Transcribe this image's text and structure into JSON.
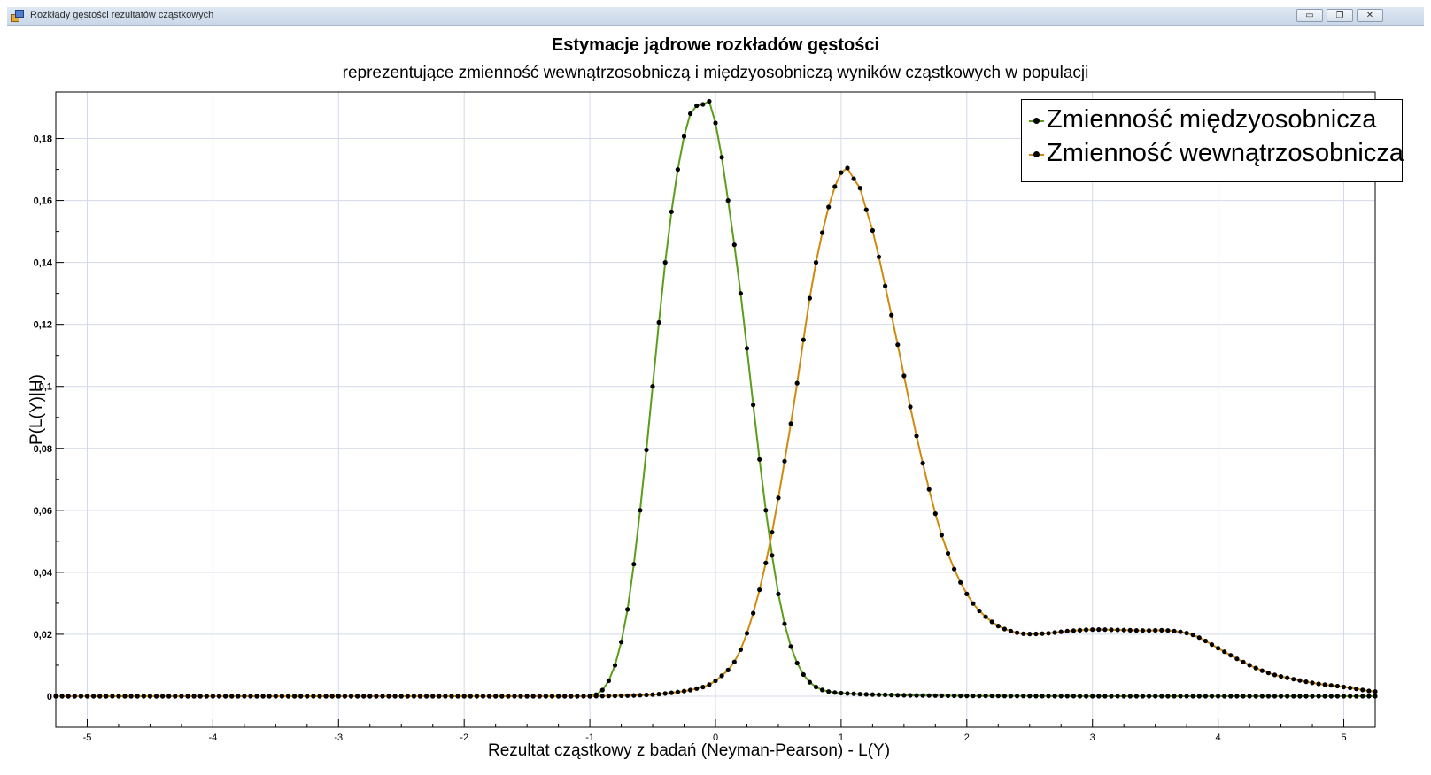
{
  "window": {
    "title": "Rozkłady gęstości rezultatów cząstkowych",
    "buttons": {
      "minimize": "▭",
      "restore": "❐",
      "close": "✕"
    }
  },
  "chart_data": {
    "type": "line",
    "title": "Estymacje jądrowe rozkładów gęstości",
    "subtitle": "reprezentujące zmienność wewnątrzosobniczą i międzyosobniczą wyników cząstkowych w populacji",
    "xlabel": "Rezultat cząstkowy z badań (Neyman-Pearson) - L(Y)",
    "ylabel": "P(L(Y)|H)",
    "xlim": [
      -5.25,
      5.25
    ],
    "ylim": [
      -0.01,
      0.195
    ],
    "x_ticks": [
      -5,
      -4,
      -3,
      -2,
      -1,
      0,
      1,
      2,
      3,
      4,
      5
    ],
    "x_tick_labels": [
      "-5",
      "-4",
      "-3",
      "-2",
      "-1",
      "0",
      "1",
      "2",
      "3",
      "4",
      "5"
    ],
    "y_ticks": [
      0,
      0.02,
      0.04,
      0.06,
      0.08,
      0.1,
      0.12,
      0.14,
      0.16,
      0.18
    ],
    "y_tick_labels": [
      "0",
      "0,02",
      "0,04",
      "0,06",
      "0,08",
      "0,1",
      "0,12",
      "0,14",
      "0,16",
      "0,18"
    ],
    "grid": true,
    "legend_position": "top-right",
    "series": [
      {
        "name": "Zmienność międzyosobnicza",
        "color": "#5a9e1a",
        "marker_color": "#000000",
        "x": [
          -5.25,
          -1.2,
          -1.0,
          -0.9,
          -0.8,
          -0.7,
          -0.6,
          -0.5,
          -0.4,
          -0.3,
          -0.2,
          -0.1,
          -0.05,
          0.0,
          0.1,
          0.2,
          0.3,
          0.4,
          0.5,
          0.6,
          0.7,
          0.8,
          0.9,
          1.0,
          1.2,
          1.5,
          2.0,
          3.0,
          4.0,
          5.0,
          5.25
        ],
        "y": [
          0,
          0,
          0,
          0.002,
          0.01,
          0.028,
          0.06,
          0.1,
          0.14,
          0.17,
          0.188,
          0.191,
          0.192,
          0.185,
          0.16,
          0.13,
          0.094,
          0.06,
          0.033,
          0.016,
          0.007,
          0.003,
          0.0015,
          0.001,
          0.0006,
          0.0003,
          0.0001,
          0,
          0,
          0,
          0
        ]
      },
      {
        "name": "Zmienność wewnątrzosobnicza",
        "color": "#d08a10",
        "marker_color": "#000000",
        "x": [
          -5.25,
          -1.0,
          -0.5,
          -0.2,
          0.0,
          0.2,
          0.4,
          0.6,
          0.8,
          1.0,
          1.1,
          1.2,
          1.4,
          1.6,
          1.8,
          2.0,
          2.2,
          2.4,
          2.6,
          2.8,
          3.0,
          3.2,
          3.4,
          3.6,
          3.8,
          4.0,
          4.2,
          4.4,
          4.6,
          4.8,
          5.0,
          5.25
        ],
        "y": [
          0,
          0,
          0.0005,
          0.002,
          0.005,
          0.015,
          0.043,
          0.088,
          0.14,
          0.169,
          0.167,
          0.157,
          0.123,
          0.084,
          0.052,
          0.033,
          0.024,
          0.0205,
          0.0202,
          0.021,
          0.0215,
          0.0214,
          0.0212,
          0.0212,
          0.0198,
          0.0155,
          0.011,
          0.0075,
          0.0055,
          0.004,
          0.003,
          0.0015
        ]
      }
    ]
  }
}
